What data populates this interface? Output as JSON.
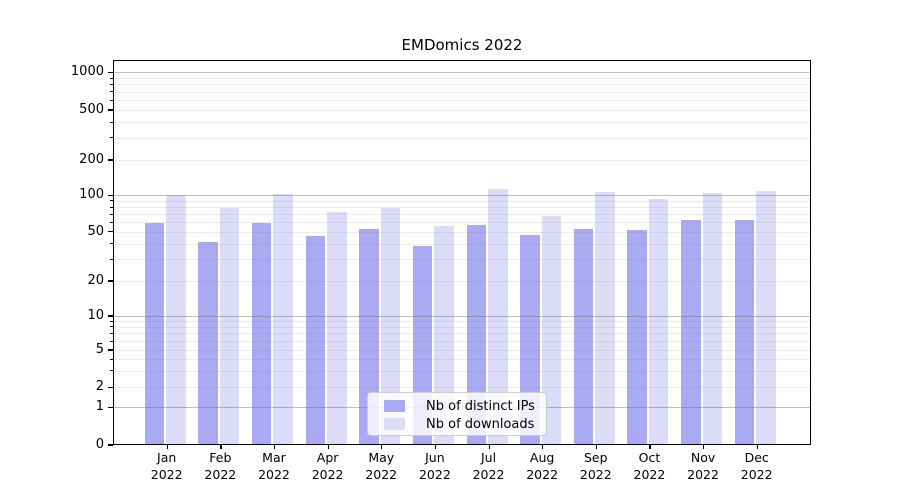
{
  "title": "EMDomics 2022",
  "background_color": "#ffffff",
  "chart_data": {
    "type": "bar",
    "title": "EMDomics 2022",
    "categories": [
      "Jan 2022",
      "Feb 2022",
      "Mar 2022",
      "Apr 2022",
      "May 2022",
      "Jun 2022",
      "Jul 2022",
      "Aug 2022",
      "Sep 2022",
      "Oct 2022",
      "Nov 2022",
      "Dec 2022"
    ],
    "series": [
      {
        "name": "Nb of distinct IPs",
        "color": "#aaaaf3",
        "values": [
          59,
          41,
          59,
          46,
          53,
          38,
          57,
          47,
          53,
          52,
          62,
          62
        ]
      },
      {
        "name": "Nb of downloads",
        "color": "#dcdcf9",
        "values": [
          100,
          78,
          102,
          73,
          79,
          56,
          114,
          68,
          107,
          93,
          104,
          109
        ]
      }
    ],
    "xlabel": "",
    "ylabel": "",
    "yscale": "symlog",
    "yticks": [
      0,
      1,
      2,
      5,
      10,
      20,
      50,
      100,
      200,
      500,
      1000
    ],
    "minor_gridlines": [
      2,
      3,
      4,
      5,
      6,
      7,
      8,
      9,
      20,
      30,
      40,
      50,
      60,
      70,
      80,
      90,
      200,
      300,
      400,
      500,
      600,
      700,
      800,
      900
    ],
    "major_gridlines": [
      1,
      10,
      100,
      1000
    ],
    "ylim": [
      0,
      1250
    ],
    "grid": true,
    "legend_position": "lower center"
  },
  "legend": {
    "items": [
      {
        "label": "Nb of distinct IPs"
      },
      {
        "label": "Nb of downloads"
      }
    ]
  }
}
